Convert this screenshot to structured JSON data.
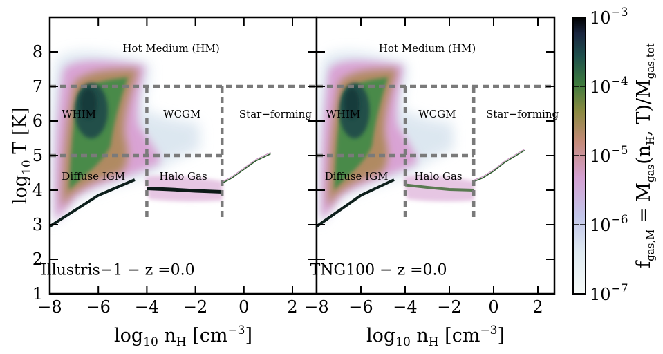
{
  "chart_data": {
    "type": "heatmap",
    "colormap": "cubehelix_r",
    "panels": [
      {
        "id": "illustris",
        "label": "Illustris−1 − z =0.0",
        "xlim": [
          -8,
          3
        ],
        "ylim": [
          1,
          9
        ],
        "eos_line": {
          "x": [
            -0.9,
            -0.5,
            0,
            0.5,
            1.1
          ],
          "y": [
            4.2,
            4.35,
            4.6,
            4.85,
            5.05
          ]
        },
        "cold_track": {
          "x": [
            -4,
            -3,
            -2,
            -0.9
          ],
          "y": [
            4.05,
            4.02,
            3.98,
            3.95
          ]
        },
        "igm_track": {
          "x": [
            -8,
            -7,
            -6,
            -5,
            -4.5
          ],
          "y": [
            2.95,
            3.4,
            3.85,
            4.15,
            4.3
          ]
        }
      },
      {
        "id": "tng100",
        "label": "TNG100 − z =0.0",
        "xlim": [
          -8,
          3
        ],
        "ylim": [
          1,
          9
        ],
        "eos_line": {
          "x": [
            -0.9,
            -0.5,
            0,
            0.5,
            1.4
          ],
          "y": [
            4.25,
            4.35,
            4.55,
            4.8,
            5.15
          ]
        },
        "cold_track": {
          "x": [
            -4,
            -3,
            -2,
            -0.9
          ],
          "y": [
            4.15,
            4.08,
            4.02,
            4.0
          ]
        },
        "igm_track": {
          "x": [
            -8,
            -7,
            -6,
            -5,
            -4.5
          ],
          "y": [
            2.95,
            3.4,
            3.85,
            4.15,
            4.3
          ]
        }
      }
    ],
    "x_ticks": [
      -8,
      -6,
      -4,
      -2,
      0,
      2
    ],
    "x_tick_labels": [
      "−8",
      "−6",
      "−4",
      "−2",
      "0",
      "2"
    ],
    "y_ticks": [
      1,
      2,
      3,
      4,
      5,
      6,
      7,
      8
    ],
    "y_tick_labels": [
      "1",
      "2",
      "3",
      "4",
      "5",
      "6",
      "7",
      "8"
    ],
    "xlabel": "log10 nH  [cm−3]",
    "ylabel": "log10 T [K]",
    "colorbar": {
      "label": "fgas,M = Mgas(nH, T)/Mgas,tot",
      "range": [
        1e-07,
        0.001
      ],
      "ticks": [
        "10−3",
        "10−4",
        "10−5",
        "10−6",
        "10−7"
      ]
    },
    "phase_boundaries": {
      "T_hot": 7.0,
      "T_warm": 5.0,
      "nH_halo": -4.0,
      "nH_sf": -0.9
    },
    "regions": [
      {
        "name": "Hot Medium (HM)",
        "x": -3.0,
        "y": 8.1
      },
      {
        "name": "WHIM",
        "x": -6.8,
        "y": 6.2
      },
      {
        "name": "WCGM",
        "x": -2.55,
        "y": 6.2
      },
      {
        "name": "Star−forming",
        "x": 1.3,
        "y": 6.2
      },
      {
        "name": "Diffuse IGM",
        "x": -6.2,
        "y": 4.4
      },
      {
        "name": "Halo Gas",
        "x": -2.5,
        "y": 4.4
      }
    ]
  }
}
